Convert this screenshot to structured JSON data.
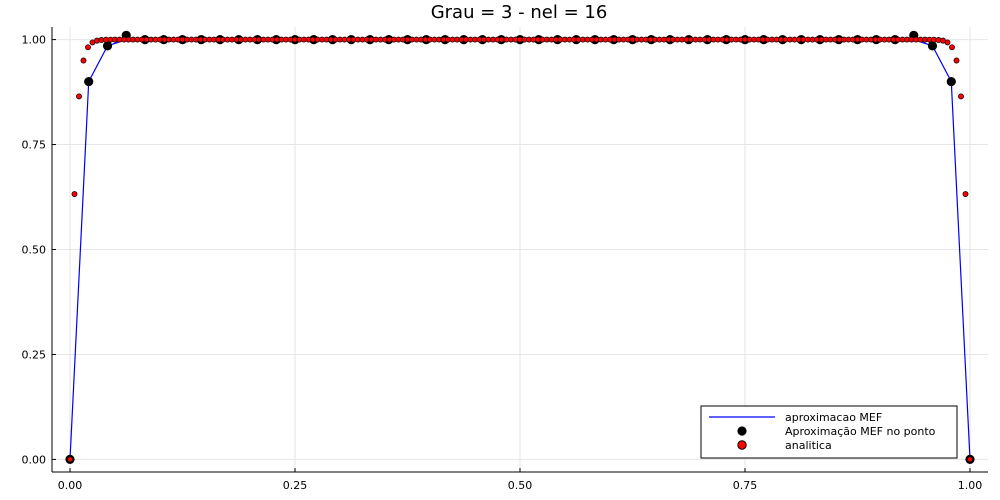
{
  "chart_data": {
    "type": "line",
    "title": "Grau = 3 - nel = 16",
    "xlabel": "",
    "ylabel": "",
    "xlim": [
      -0.02,
      1.02
    ],
    "ylim": [
      -0.03,
      1.03
    ],
    "x_ticks": [
      0,
      0.25,
      0.5,
      0.75,
      1
    ],
    "x_tick_labels": [
      "0.00",
      "0.25",
      "0.50",
      "0.75",
      "1.00"
    ],
    "y_ticks": [
      0,
      0.25,
      0.5,
      0.75,
      1
    ],
    "y_tick_labels": [
      "0.00",
      "0.25",
      "0.50",
      "0.75",
      "1.00"
    ],
    "grid": true,
    "legend_position": "bottom-right",
    "series": [
      {
        "name": "aproximacao MEF",
        "kind": "line",
        "color": "#0000ff",
        "x": [
          0,
          0.0208,
          0.0417,
          0.0625,
          0.0833,
          0.9167,
          0.9375,
          0.9583,
          0.9792,
          1
        ],
        "y": [
          0,
          0.9,
          0.985,
          1.0,
          1.0,
          1.0,
          1.0,
          0.985,
          0.9,
          0
        ]
      },
      {
        "name": "Aproximação MEF no ponto",
        "kind": "scatter",
        "color": "#000000",
        "x": [
          0,
          0.0208,
          0.0417,
          0.0625,
          0.0833,
          0.1042,
          0.125,
          0.1458,
          0.1667,
          0.1875,
          0.2083,
          0.2292,
          0.25,
          0.2708,
          0.2917,
          0.3125,
          0.3333,
          0.3542,
          0.375,
          0.3958,
          0.4167,
          0.4375,
          0.4583,
          0.4792,
          0.5,
          0.5208,
          0.5417,
          0.5625,
          0.5833,
          0.6042,
          0.625,
          0.6458,
          0.6667,
          0.6875,
          0.7083,
          0.7292,
          0.75,
          0.7708,
          0.7917,
          0.8125,
          0.8333,
          0.8542,
          0.875,
          0.8958,
          0.9167,
          0.9375,
          0.9583,
          0.9792,
          1
        ],
        "y": [
          0,
          0.9,
          0.985,
          1.01,
          1.0,
          1.0,
          1.0,
          1.0,
          1.0,
          1.0,
          1.0,
          1.0,
          1.0,
          1.0,
          1.0,
          1.0,
          1.0,
          1.0,
          1.0,
          1.0,
          1.0,
          1.0,
          1.0,
          1.0,
          1.0,
          1.0,
          1.0,
          1.0,
          1.0,
          1.0,
          1.0,
          1.0,
          1.0,
          1.0,
          1.0,
          1.0,
          1.0,
          1.0,
          1.0,
          1.0,
          1.0,
          1.0,
          1.0,
          1.0,
          1.0,
          1.01,
          0.985,
          0.9,
          0
        ]
      },
      {
        "name": "analitica",
        "kind": "scatter",
        "color": "#ff0000",
        "edge_color": "#000000",
        "function": "1-(exp(-x/eps)+exp(-(1-x)/eps))/(1+exp(-1/eps))",
        "eps": 0.005,
        "n_points": 201
      }
    ]
  }
}
